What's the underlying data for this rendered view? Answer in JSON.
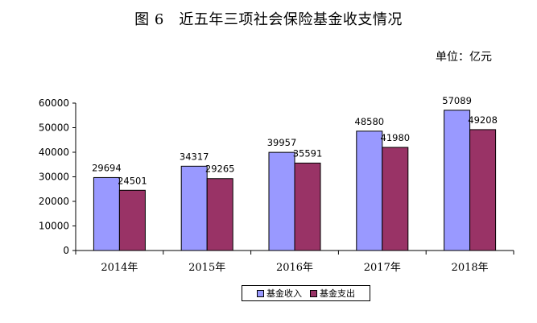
{
  "header": {
    "title": "图 6　近五年三项社会保险基金收支情况",
    "unit": "单位：亿元"
  },
  "chart_data": {
    "type": "bar",
    "title": "图 6　近五年三项社会保险基金收支情况",
    "unit": "单位：亿元",
    "categories": [
      "2014年",
      "2015年",
      "2016年",
      "2017年",
      "2018年"
    ],
    "series": [
      {
        "name": "基金收入",
        "values": [
          29694,
          34317,
          39957,
          48580,
          57089
        ],
        "color": "#9999FF"
      },
      {
        "name": "基金支出",
        "values": [
          24501,
          29265,
          35591,
          41980,
          49208
        ],
        "color": "#993366"
      }
    ],
    "ylim": [
      0,
      60000
    ],
    "yticks": [
      "0",
      "10000",
      "20000",
      "30000",
      "40000",
      "50000",
      "60000"
    ],
    "grid": false,
    "legend_position": "bottom-center"
  }
}
